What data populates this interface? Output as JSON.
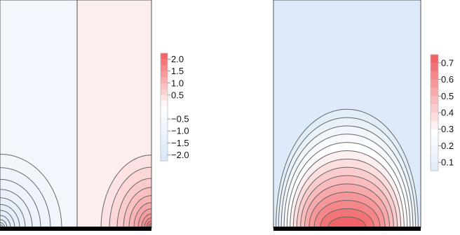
{
  "chart_data": [
    {
      "type": "contour",
      "title": "",
      "xlabel": "",
      "ylabel": "",
      "grid": false,
      "colorbar": {
        "position": "right",
        "ticks": [
          "2.0",
          "1.5",
          "1.0",
          "0.5",
          "−0.5",
          "−1.0",
          "−1.5",
          "−2.0"
        ],
        "levels": [
          2.25,
          2.0,
          1.75,
          1.5,
          1.25,
          1.0,
          0.75,
          0.5,
          0.25,
          0.0,
          -0.25,
          -0.5,
          -0.75,
          -1.0,
          -1.25,
          -1.5,
          -1.75,
          -2.0,
          -2.25
        ],
        "max_color": "#f15a5e",
        "min_color": "#d7e6f8"
      },
      "sources": [
        {
          "position": "bottom-left",
          "sign": -1
        },
        {
          "position": "bottom-right",
          "sign": 1
        }
      ],
      "divider": "vertical-center",
      "colors": {
        "negative": "#f3f7fd",
        "positive": "#fdeeee",
        "line": "#666666"
      }
    },
    {
      "type": "contour",
      "title": "",
      "xlabel": "",
      "ylabel": "",
      "grid": false,
      "colorbar": {
        "position": "right",
        "ticks": [
          "0.7",
          "0.6",
          "0.5",
          "0.4",
          "0.3",
          "0.2",
          "0.1"
        ],
        "levels": [
          0.75,
          0.7,
          0.65,
          0.6,
          0.55,
          0.5,
          0.45,
          0.4,
          0.35,
          0.3,
          0.25,
          0.2,
          0.15,
          0.1,
          0.05
        ],
        "max_color": "#f15a5e",
        "min_color": "#d7e6f8"
      },
      "contour_levels": [
        0.05,
        0.1,
        0.15,
        0.2,
        0.25,
        0.3,
        0.35,
        0.4,
        0.45,
        0.5,
        0.55,
        0.6,
        0.65,
        0.7
      ],
      "colors": {
        "background": "#dceafa",
        "line": "#666666"
      }
    }
  ]
}
